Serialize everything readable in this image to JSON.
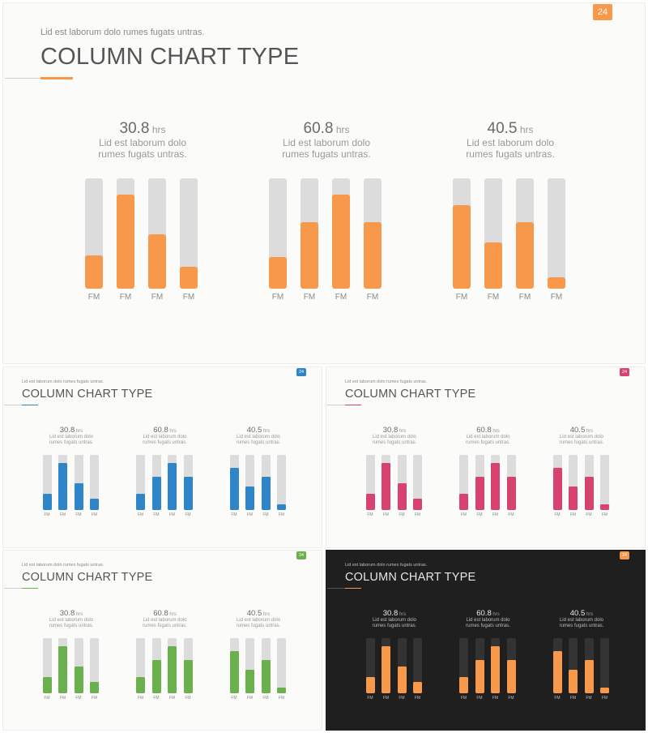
{
  "slide": {
    "subtitle": "Lid est laborum dolo rumes fugats untras.",
    "title": "COLUMN CHART TYPE",
    "page_number": "24"
  },
  "stats": [
    {
      "value": "30.8",
      "unit": "hrs",
      "description": "Lid est laborum dolo rumes fugats untras."
    },
    {
      "value": "60.8",
      "unit": "hrs",
      "description": "Lid est laborum dolo rumes fugats untras."
    },
    {
      "value": "40.5",
      "unit": "hrs",
      "description": "Lid est laborum dolo rumes fugats untras."
    }
  ],
  "variants": [
    {
      "name": "orange",
      "accent": "#f7984a",
      "track": "#dcdcdc",
      "background": "#fbfbf9"
    },
    {
      "name": "blue",
      "accent": "#2e86c8",
      "track": "#dcdcdc",
      "background": "#fbfbf9"
    },
    {
      "name": "pink",
      "accent": "#d8426f",
      "track": "#dcdcdc",
      "background": "#fbfbf9"
    },
    {
      "name": "green",
      "accent": "#6ab04c",
      "track": "#dcdcdc",
      "background": "#fbfbf9"
    },
    {
      "name": "dark",
      "accent": "#f7984a",
      "track": "#333333",
      "background": "#1f1f1f"
    }
  ],
  "chart_data": [
    {
      "type": "bar",
      "categories": [
        "FM",
        "FM",
        "FM",
        "FM"
      ],
      "values": [
        30,
        85,
        49,
        20
      ],
      "ylim": [
        0,
        100
      ],
      "xlabel": "",
      "ylabel": ""
    },
    {
      "type": "bar",
      "categories": [
        "FM",
        "FM",
        "FM",
        "FM"
      ],
      "values": [
        29,
        60,
        85,
        60
      ],
      "ylim": [
        0,
        100
      ],
      "xlabel": "",
      "ylabel": ""
    },
    {
      "type": "bar",
      "categories": [
        "FM",
        "FM",
        "FM",
        "FM"
      ],
      "values": [
        76,
        42,
        60,
        10
      ],
      "ylim": [
        0,
        100
      ],
      "xlabel": "",
      "ylabel": ""
    }
  ]
}
